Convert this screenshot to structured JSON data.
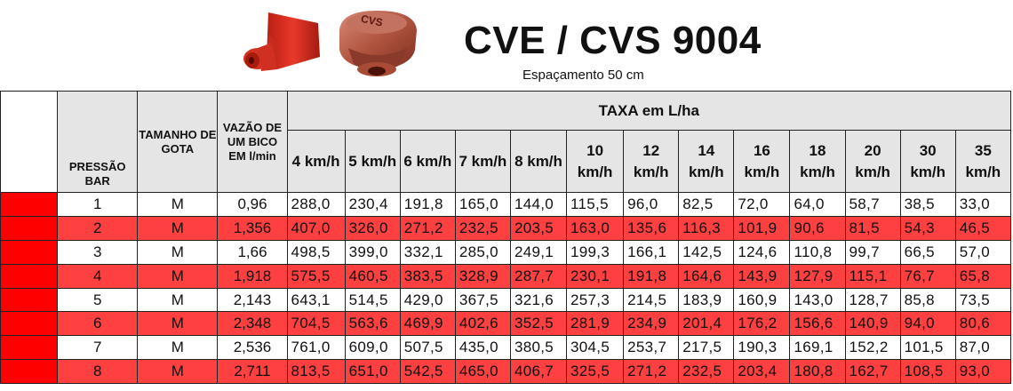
{
  "header": {
    "title": "CVE / CVS 9004",
    "subtitle": "Espaçamento 50 cm",
    "images": [
      "red-nozzle-icon",
      "brown-nozzle-cap-icon"
    ],
    "nozzle_cap_text": "CVS"
  },
  "colors": {
    "red": "#ff0000",
    "row_red": "#ff4040",
    "header_gray": "#e5e5e5"
  },
  "table": {
    "col_pressao": "PRESSÃO BAR",
    "col_gota": "TAMANHO DE GOTA",
    "col_vazao": "VAZÃO DE UM BICO EM l/min",
    "taxa_header": "TAXA em L/ha",
    "speeds": [
      "4 km/h",
      "5 km/h",
      "6 km/h",
      "7 km/h",
      "8 km/h",
      "10 km/h",
      "12 km/h",
      "14 km/h",
      "16 km/h",
      "18 km/h",
      "20 km/h",
      "30 km/h",
      "35 km/h"
    ],
    "rows": [
      {
        "pressao": "1",
        "gota": "M",
        "vazao": "0,96",
        "taxa": [
          "288,0",
          "230,4",
          "191,8",
          "165,0",
          "144,0",
          "115,5",
          "96,0",
          "82,5",
          "72,0",
          "64,0",
          "58,7",
          "38,5",
          "33,0"
        ]
      },
      {
        "pressao": "2",
        "gota": "M",
        "vazao": "1,356",
        "taxa": [
          "407,0",
          "326,0",
          "271,2",
          "232,5",
          "203,5",
          "163,0",
          "135,6",
          "116,3",
          "101,9",
          "90,6",
          "81,5",
          "54,3",
          "46,5"
        ]
      },
      {
        "pressao": "3",
        "gota": "M",
        "vazao": "1,66",
        "taxa": [
          "498,5",
          "399,0",
          "332,1",
          "285,0",
          "249,1",
          "199,3",
          "166,1",
          "142,5",
          "124,6",
          "110,8",
          "99,7",
          "66,5",
          "57,0"
        ]
      },
      {
        "pressao": "4",
        "gota": "M",
        "vazao": "1,918",
        "taxa": [
          "575,5",
          "460,5",
          "383,5",
          "328,9",
          "287,7",
          "230,1",
          "191,8",
          "164,6",
          "143,9",
          "127,9",
          "115,1",
          "76,7",
          "65,8"
        ]
      },
      {
        "pressao": "5",
        "gota": "M",
        "vazao": "2,143",
        "taxa": [
          "643,1",
          "514,5",
          "429,0",
          "367,5",
          "321,6",
          "257,3",
          "214,5",
          "183,9",
          "160,9",
          "143,0",
          "128,7",
          "85,8",
          "73,5"
        ]
      },
      {
        "pressao": "6",
        "gota": "M",
        "vazao": "2,348",
        "taxa": [
          "704,5",
          "563,6",
          "469,9",
          "402,6",
          "352,5",
          "281,9",
          "234,9",
          "201,4",
          "176,2",
          "156,6",
          "140,9",
          "94,0",
          "80,6"
        ]
      },
      {
        "pressao": "7",
        "gota": "M",
        "vazao": "2,536",
        "taxa": [
          "761,0",
          "609,0",
          "507,5",
          "435,0",
          "380,5",
          "304,5",
          "253,7",
          "217,5",
          "190,3",
          "169,1",
          "152,2",
          "101,5",
          "87,0"
        ]
      },
      {
        "pressao": "8",
        "gota": "M",
        "vazao": "2,711",
        "taxa": [
          "813,5",
          "651,0",
          "542,5",
          "465,0",
          "406,7",
          "325,5",
          "271,2",
          "232,5",
          "203,4",
          "180,8",
          "162,7",
          "108,5",
          "93,0"
        ]
      }
    ]
  }
}
